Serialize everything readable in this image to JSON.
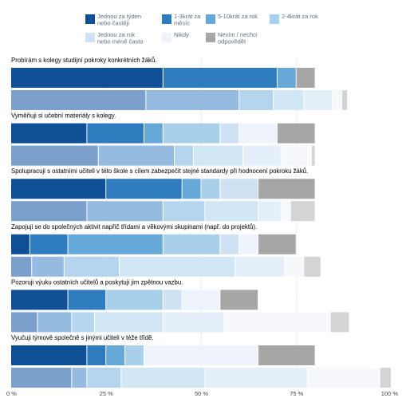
{
  "chart_data": {
    "type": "bar",
    "orientation": "horizontal",
    "stacked": "percent",
    "bars_per_question": 2,
    "legend": [
      {
        "label_lines": [
          "Jednou za týden",
          "nebo častěji"
        ],
        "color": "#0e4f96"
      },
      {
        "label_lines": [
          "1-3krát za",
          "měsíc"
        ],
        "color": "#2e7cbe"
      },
      {
        "label_lines": [
          "5-10krát za rok"
        ],
        "color": "#66a9d9"
      },
      {
        "label_lines": [
          "2-4krát za rok"
        ],
        "color": "#a9d0ea"
      },
      {
        "label_lines": [
          "Jednou za rok",
          "nebo méně často"
        ],
        "color": "#cfe2f3"
      },
      {
        "label_lines": [
          "Nikdy"
        ],
        "color": "#eef3fc"
      },
      {
        "label_lines": [
          "Nevím / nechci",
          "odpovědět"
        ],
        "color": "#a6a6a6"
      }
    ],
    "faded_colors": [
      "#7ba0cc",
      "#95bce0",
      "#b5d5ee",
      "#d2e7f5",
      "#e4eff9",
      "#f6f8fc",
      "#d4d4d4"
    ],
    "x_ticks": [
      "0 %",
      "25 %",
      "50 %",
      "75 %",
      "100 %"
    ],
    "xlim": [
      0,
      100
    ],
    "questions": [
      {
        "label": "Probírám s kolegy studijní pokroky konkrétních žáků.",
        "values": [
          40,
          30,
          5,
          0,
          0,
          0,
          5
        ],
        "comparison_values": [
          35.5,
          24.5,
          9,
          8,
          7.5,
          2.5,
          1.5
        ]
      },
      {
        "label": "Vyměňuji si učební materiály s kolegy.",
        "values": [
          20,
          15,
          5,
          15,
          5,
          10,
          10
        ],
        "comparison_values": [
          23,
          20,
          5,
          13,
          10,
          8,
          1
        ]
      },
      {
        "label": "Spolupracuji s ostatními učiteli v této škole s cílem zabezpečit stejné standardy při hodnocení pokroku žáků.",
        "values": [
          25,
          20,
          5,
          5,
          10,
          0,
          15
        ],
        "comparison_values": [
          20,
          20,
          11,
          14,
          6,
          2.5,
          6.5
        ]
      },
      {
        "label": "Zapojuji se do společných aktivit napříč třídami a věkovými skupinami (např. do projektů).",
        "values": [
          5,
          10,
          25,
          15,
          5,
          5,
          10
        ],
        "comparison_values": [
          5.5,
          8.5,
          14.5,
          30.5,
          13,
          5,
          4.5
        ]
      },
      {
        "label": "Pozoruji výuku ostatních učitelů a poskytuji jim zpětnou vazbu.",
        "values": [
          15,
          10,
          0,
          15,
          5,
          10,
          10
        ],
        "comparison_values": [
          7,
          9,
          6,
          18,
          16,
          28,
          5
        ]
      },
      {
        "label": "Vyučuji týmově společně s jinými učiteli v téže třídě.",
        "values": [
          20,
          5,
          5,
          5,
          0,
          30,
          15
        ],
        "comparison_values": [
          16,
          4,
          9,
          22,
          27,
          19,
          3
        ]
      }
    ]
  }
}
